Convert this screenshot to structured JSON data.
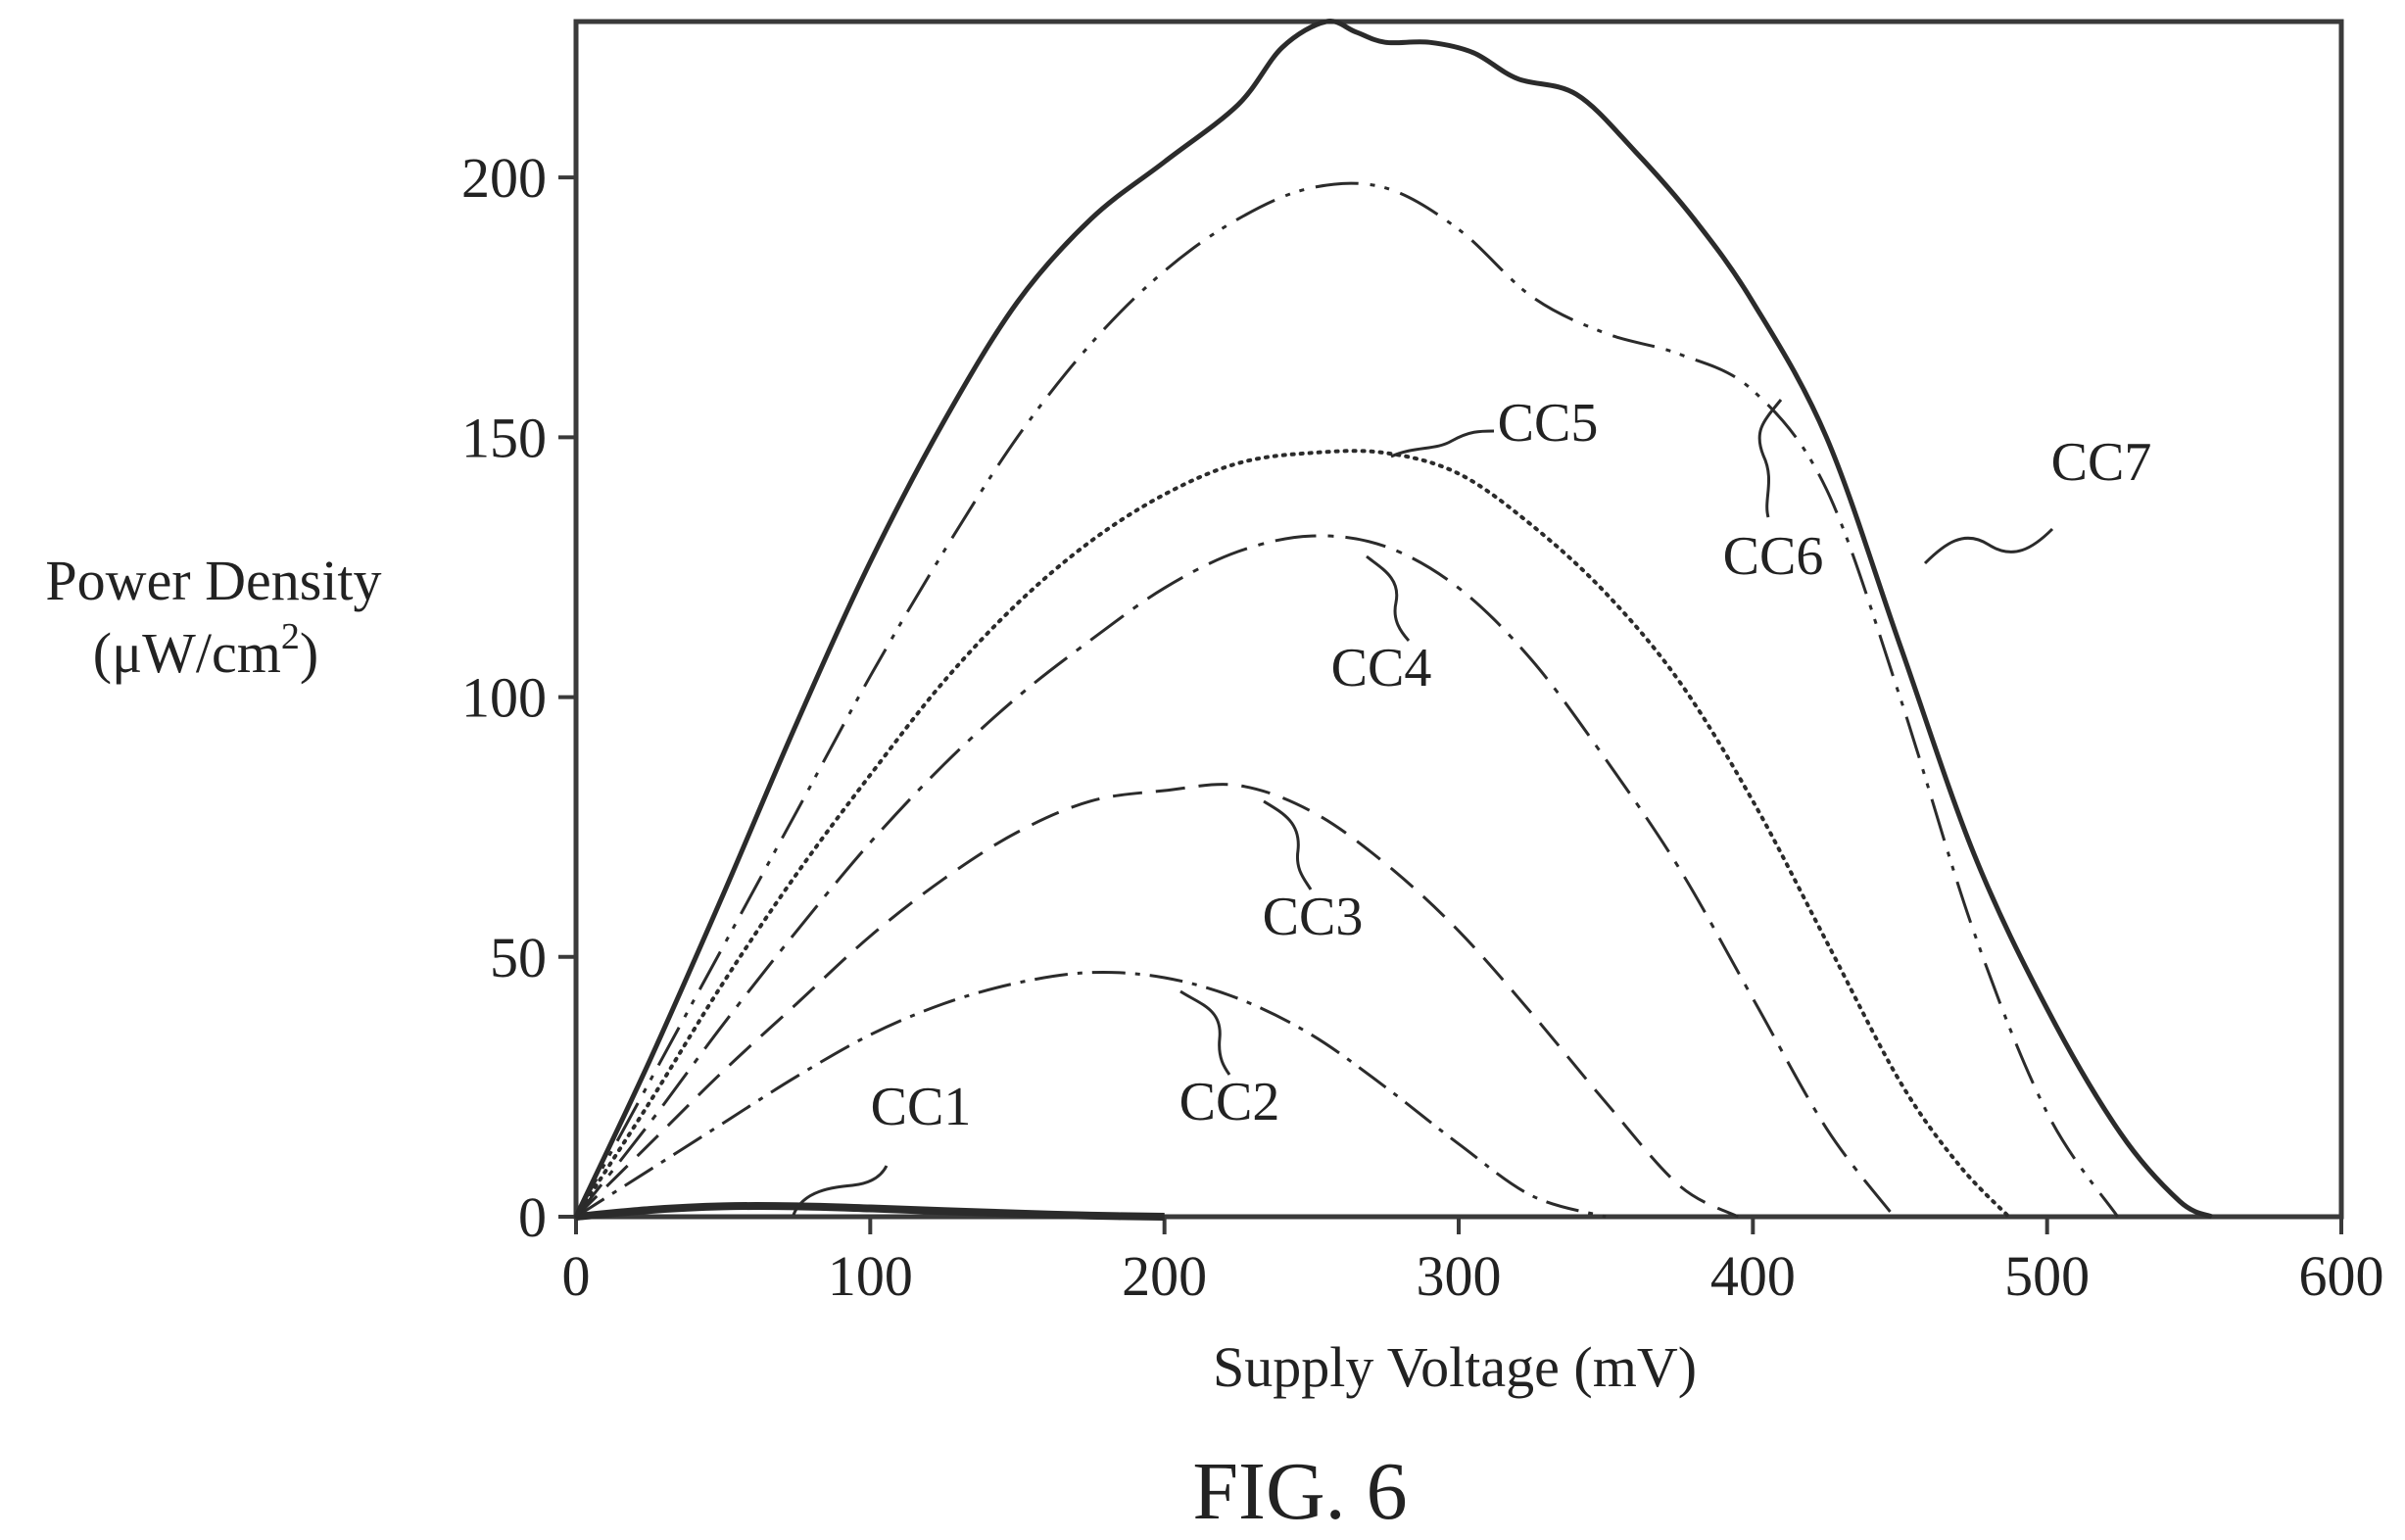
{
  "chart_data": {
    "type": "line",
    "caption": "FIG. 6",
    "xlabel": "Supply Voltage (mV)",
    "ylabel": "Power Density",
    "ylabel_unit_prefix": "(μW/cm",
    "ylabel_unit_power": "2",
    "ylabel_unit_suffix": ")",
    "xlim": [
      0,
      600
    ],
    "ylim": [
      0,
      230
    ],
    "xticks": [
      0,
      100,
      200,
      300,
      400,
      500,
      600
    ],
    "yticks": [
      0,
      50,
      100,
      150,
      200
    ],
    "xtick_labels": [
      "0",
      "100",
      "200",
      "300",
      "400",
      "500",
      "600"
    ],
    "ytick_labels": [
      "0",
      "50",
      "100",
      "150",
      "200"
    ],
    "grid": false,
    "legend": "none",
    "series": [
      {
        "name": "CC1",
        "label": "CC1",
        "x": [
          0,
          25,
          50,
          75,
          100,
          125,
          150,
          175,
          200
        ],
        "y": [
          0,
          1.3,
          2.0,
          2.0,
          1.6,
          1.1,
          0.6,
          0.2,
          0
        ]
      },
      {
        "name": "CC2",
        "label": "CC2",
        "x": [
          0,
          25,
          50,
          75,
          100,
          125,
          150,
          175,
          200,
          225,
          250,
          275,
          300,
          325,
          350
        ],
        "y": [
          0,
          9,
          18,
          27,
          35,
          41,
          45,
          47,
          46,
          42,
          35,
          25,
          14,
          4,
          0
        ]
      },
      {
        "name": "CC3",
        "label": "CC3",
        "x": [
          0,
          25,
          50,
          75,
          100,
          125,
          150,
          175,
          200,
          225,
          250,
          275,
          300,
          325,
          350,
          375,
          395
        ],
        "y": [
          0,
          14,
          28,
          41,
          54,
          65,
          74,
          80,
          82,
          83,
          78,
          68,
          55,
          39,
          22,
          6,
          0
        ]
      },
      {
        "name": "CC4",
        "label": "CC4",
        "x": [
          0,
          25,
          50,
          75,
          100,
          125,
          150,
          175,
          200,
          225,
          250,
          275,
          300,
          325,
          350,
          375,
          400,
          425,
          448
        ],
        "y": [
          0,
          18,
          37,
          55,
          72,
          87,
          100,
          111,
          121,
          128,
          131,
          129,
          121,
          107,
          88,
          67,
          42,
          17,
          0
        ]
      },
      {
        "name": "CC5",
        "label": "CC5",
        "x": [
          0,
          25,
          50,
          75,
          100,
          125,
          150,
          175,
          200,
          225,
          250,
          275,
          300,
          325,
          350,
          375,
          400,
          425,
          450,
          470,
          487
        ],
        "y": [
          0,
          22,
          45,
          66,
          85,
          103,
          118,
          130,
          139,
          145,
          147,
          147,
          143,
          133,
          120,
          103,
          80,
          53,
          26,
          10,
          0
        ]
      },
      {
        "name": "CC6",
        "label": "CC6",
        "x": [
          0,
          25,
          50,
          75,
          100,
          125,
          150,
          175,
          200,
          225,
          250,
          275,
          300,
          325,
          350,
          375,
          400,
          425,
          450,
          475,
          500,
          524
        ],
        "y": [
          0,
          26,
          52,
          78,
          104,
          128,
          150,
          168,
          182,
          192,
          198,
          198,
          190,
          177,
          170,
          166,
          159,
          140,
          100,
          55,
          20,
          0
        ]
      },
      {
        "name": "CC7",
        "label": "CC7",
        "x": [
          0,
          25,
          50,
          75,
          100,
          125,
          150,
          175,
          200,
          225,
          240,
          255,
          265,
          275,
          290,
          305,
          320,
          340,
          360,
          380,
          400,
          425,
          450,
          475,
          500,
          525,
          545,
          556
        ],
        "y": [
          0,
          30,
          62,
          95,
          126,
          153,
          176,
          192,
          203,
          214,
          225,
          230,
          228,
          226,
          226,
          224,
          219,
          216,
          205,
          192,
          176,
          150,
          110,
          70,
          40,
          16,
          3,
          0
        ]
      }
    ]
  }
}
